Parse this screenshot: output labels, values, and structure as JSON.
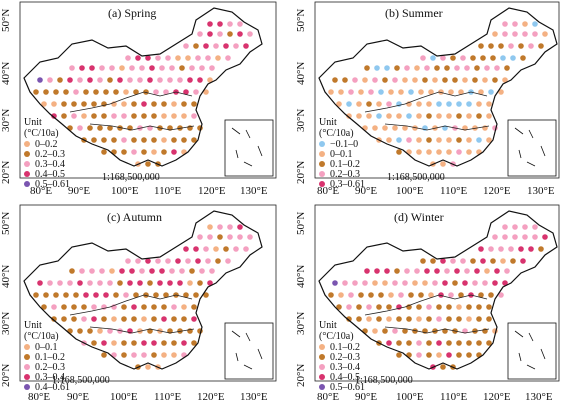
{
  "axis": {
    "x_ticks": [
      "80°E",
      "90°E",
      "100°E",
      "110°E",
      "120°E",
      "130°E"
    ],
    "y_ticks": [
      "20°N",
      "30°N",
      "40°N",
      "50°N"
    ]
  },
  "scale_text": "1:168,500,000",
  "unit_label": "Unit",
  "unit_value": "(°C/10a)",
  "panels": [
    {
      "id": "spring",
      "title": "(a) Spring",
      "legend": [
        {
          "label": "0–0.2",
          "color": "#f4b183"
        },
        {
          "label": "0.2–0.3",
          "color": "#c0792b"
        },
        {
          "label": "0.3–0.4",
          "color": "#f4a0c0"
        },
        {
          "label": "0.4–0.5",
          "color": "#d8336e"
        },
        {
          "label": "0.5–0.61",
          "color": "#7a55b0"
        }
      ]
    },
    {
      "id": "summer",
      "title": "(b) Summer",
      "legend": [
        {
          "label": "−0.1–0",
          "color": "#8fc8ef"
        },
        {
          "label": "0–0.1",
          "color": "#f4b183"
        },
        {
          "label": "0.1–0.2",
          "color": "#c0792b"
        },
        {
          "label": "0.2–0.3",
          "color": "#f4a0c0"
        },
        {
          "label": "0.3–0.61",
          "color": "#d8336e"
        }
      ]
    },
    {
      "id": "autumn",
      "title": "(c) Autumn",
      "legend": [
        {
          "label": "0–0.1",
          "color": "#f4b183"
        },
        {
          "label": "0.1–0.2",
          "color": "#c0792b"
        },
        {
          "label": "0.2–0.3",
          "color": "#f4a0c0"
        },
        {
          "label": "0.3–0.4",
          "color": "#d8336e"
        },
        {
          "label": "0.4–0.61",
          "color": "#7a55b0"
        }
      ]
    },
    {
      "id": "winter",
      "title": "(d) Winter",
      "legend": [
        {
          "label": "0.1–0.2",
          "color": "#f4b183"
        },
        {
          "label": "0.2–0.3",
          "color": "#c0792b"
        },
        {
          "label": "0.3–0.4",
          "color": "#f4a0c0"
        },
        {
          "label": "0.4–0.5",
          "color": "#d8336e"
        },
        {
          "label": "0.5–0.61",
          "color": "#7a55b0"
        }
      ]
    }
  ]
}
